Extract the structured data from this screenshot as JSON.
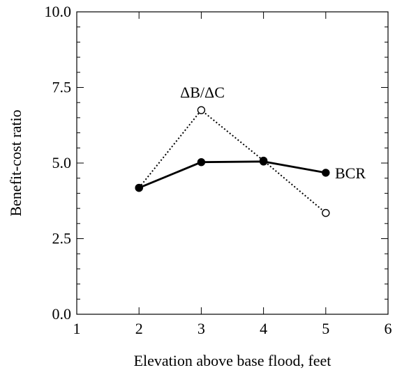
{
  "chart_data": {
    "type": "line",
    "title": "",
    "xlabel": "Elevation above base flood, feet",
    "ylabel": "Benefit-cost ratio",
    "xlim": [
      1,
      6
    ],
    "ylim": [
      0,
      10
    ],
    "x_ticks": [
      "1",
      "2",
      "3",
      "4",
      "5",
      "6"
    ],
    "y_ticks": [
      "0.0",
      "2.5",
      "5.0",
      "7.5",
      "10.0"
    ],
    "grid": false,
    "legend": "none",
    "series": [
      {
        "name": "BCR",
        "line_style": "solid",
        "marker": "filled-circle",
        "color": "#000000",
        "x": [
          2,
          3,
          4,
          5
        ],
        "y": [
          4.18,
          5.03,
          5.05,
          4.68
        ]
      },
      {
        "name": "ΔB/ΔC",
        "line_style": "dotted",
        "marker": "open-circle",
        "color": "#000000",
        "x": [
          2,
          3,
          4,
          5
        ],
        "y": [
          4.18,
          6.75,
          5.08,
          3.35
        ]
      }
    ]
  }
}
